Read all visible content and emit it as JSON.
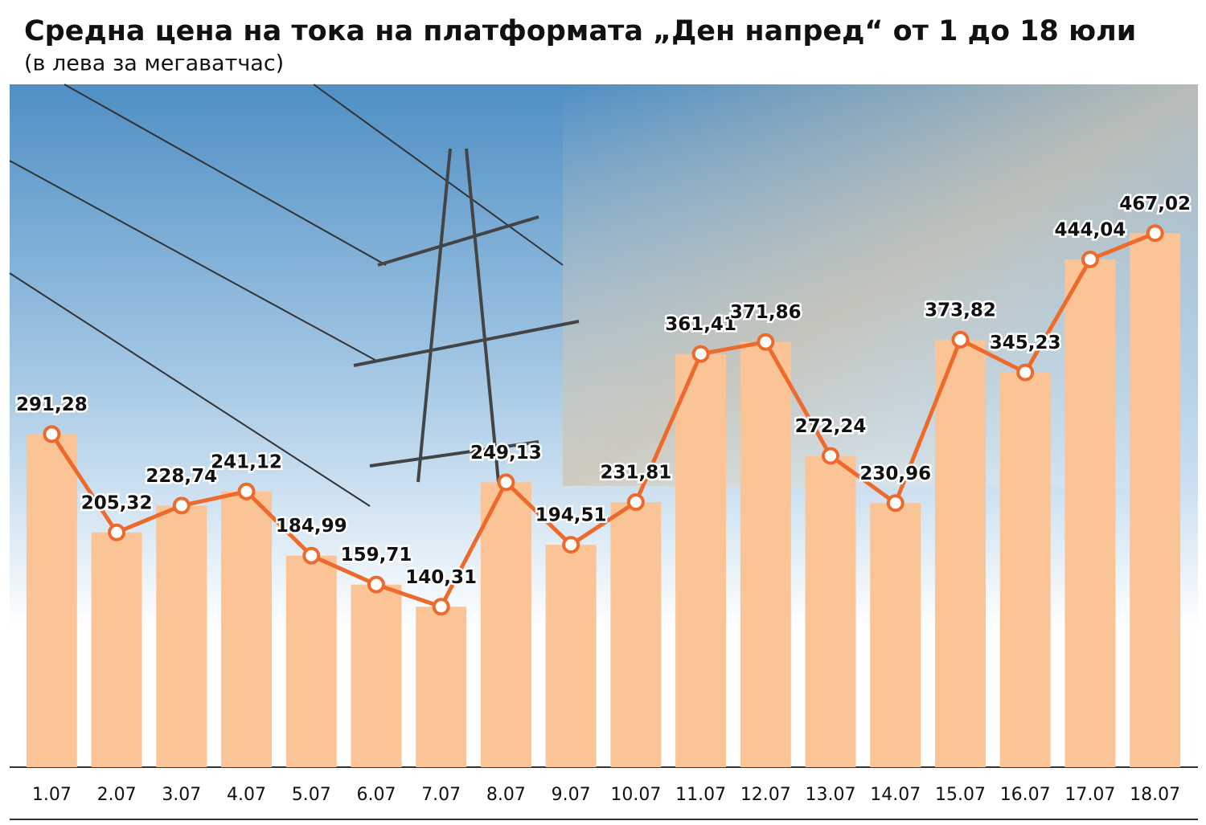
{
  "chart_data": {
    "type": "bar",
    "title": "Средна цена на тока на платформата „Ден напред“ от 1 до 18 юли",
    "subtitle": "(в лева за мегаватчас)",
    "categories": [
      "1.07",
      "2.07",
      "3.07",
      "4.07",
      "5.07",
      "6.07",
      "7.07",
      "8.07",
      "9.07",
      "10.07",
      "11.07",
      "12.07",
      "13.07",
      "14.07",
      "15.07",
      "16.07",
      "17.07",
      "18.07"
    ],
    "values": [
      291.28,
      205.32,
      228.74,
      241.12,
      184.99,
      159.71,
      140.31,
      249.13,
      194.51,
      231.81,
      361.41,
      371.86,
      272.24,
      230.96,
      373.82,
      345.23,
      444.04,
      467.02
    ],
    "value_labels": [
      "291,28",
      "205,32",
      "228,74",
      "241,12",
      "184,99",
      "159,71",
      "140,31",
      "249,13",
      "194,51",
      "231,81",
      "361,41",
      "371,86",
      "272,24",
      "230,96",
      "373,82",
      "345,23",
      "444,04",
      "467,02"
    ],
    "color": "#fbc497",
    "line": true,
    "line_color": "#ee6a2c",
    "ylim": [
      0,
      600
    ]
  }
}
